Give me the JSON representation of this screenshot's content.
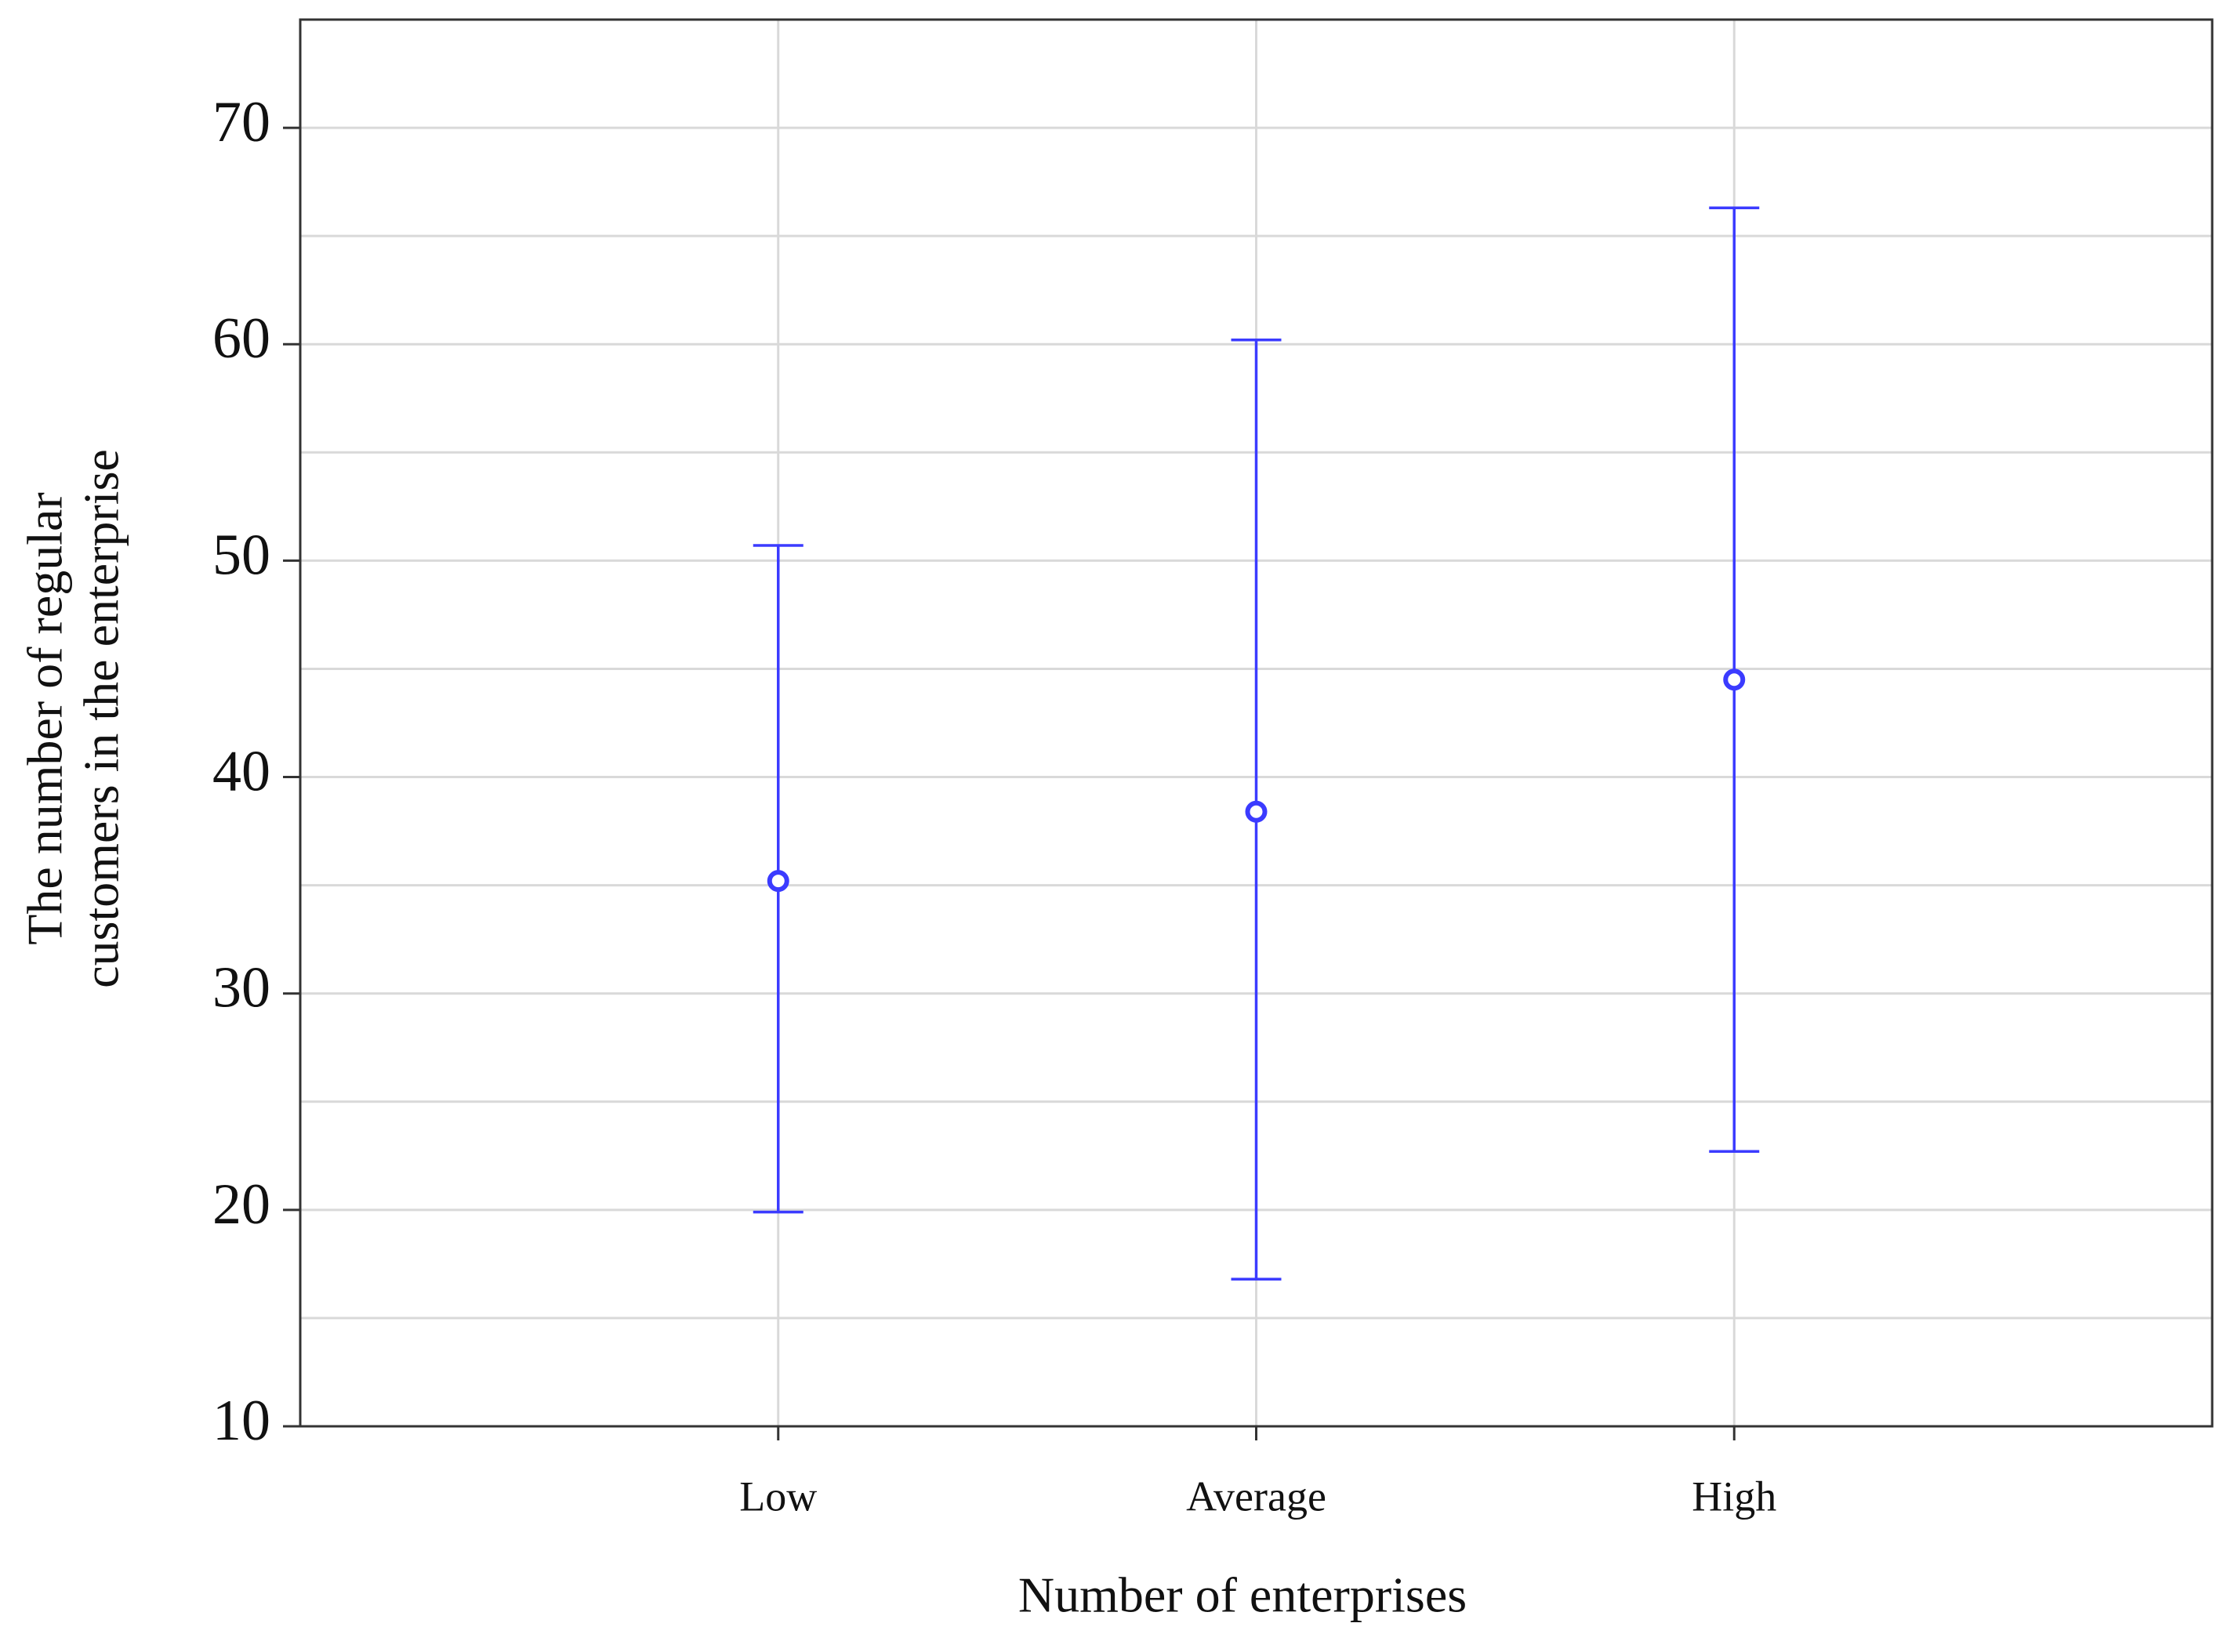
{
  "chart_data": {
    "type": "errorbar",
    "xlabel": "Number of enterprises",
    "ylabel": [
      "The number of regular",
      "customers in the enterprise"
    ],
    "categories": [
      "Low",
      "Average",
      "High"
    ],
    "series": [
      {
        "color": "#3b3bff",
        "values": [
          35.2,
          38.4,
          44.5
        ],
        "lower": [
          19.9,
          16.8,
          22.7
        ],
        "upper": [
          50.7,
          60.2,
          66.3
        ]
      }
    ],
    "ylim": [
      10,
      75
    ],
    "yticks": [
      10,
      20,
      30,
      40,
      50,
      60,
      70
    ],
    "yminor": [
      15,
      25,
      35,
      45,
      55,
      65
    ],
    "grid": true
  }
}
